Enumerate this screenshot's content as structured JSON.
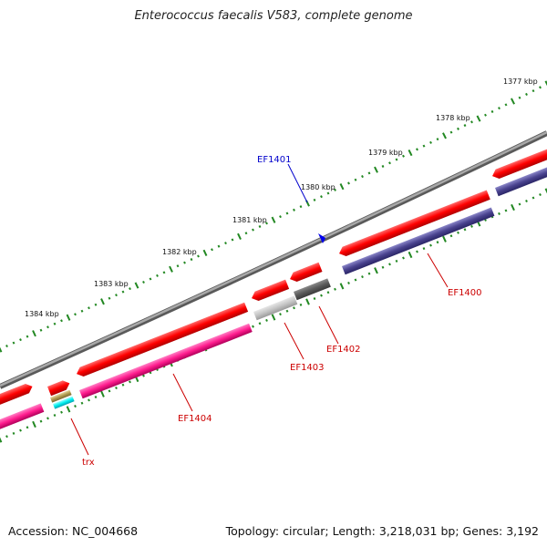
{
  "title": "Enterococcus faecalis V583, complete genome",
  "footer": {
    "accession": "Accession: NC_004668",
    "summary": "Topology: circular; Length: 3,218,031 bp; Genes: 3,192"
  },
  "colors": {
    "tick": "#228822",
    "backbone": "#808080",
    "label_red": "#cc0000",
    "label_blue": "#0000cc"
  },
  "kbp_labels": [
    {
      "text": "1377 kbp"
    },
    {
      "text": "1378 kbp"
    },
    {
      "text": "1379 kbp"
    },
    {
      "text": "1380 kbp"
    },
    {
      "text": "1381 kbp"
    },
    {
      "text": "1382 kbp"
    },
    {
      "text": "1383 kbp"
    },
    {
      "text": "1384 kbp"
    }
  ],
  "genes": [
    {
      "name": "EF1400",
      "color": "#cc0000"
    },
    {
      "name": "EF1401",
      "color": "#0000cc"
    },
    {
      "name": "EF1402",
      "color": "#cc0000"
    },
    {
      "name": "EF1403",
      "color": "#cc0000"
    },
    {
      "name": "EF1404",
      "color": "#cc0000"
    },
    {
      "name": "trx",
      "color": "#cc0000"
    }
  ]
}
